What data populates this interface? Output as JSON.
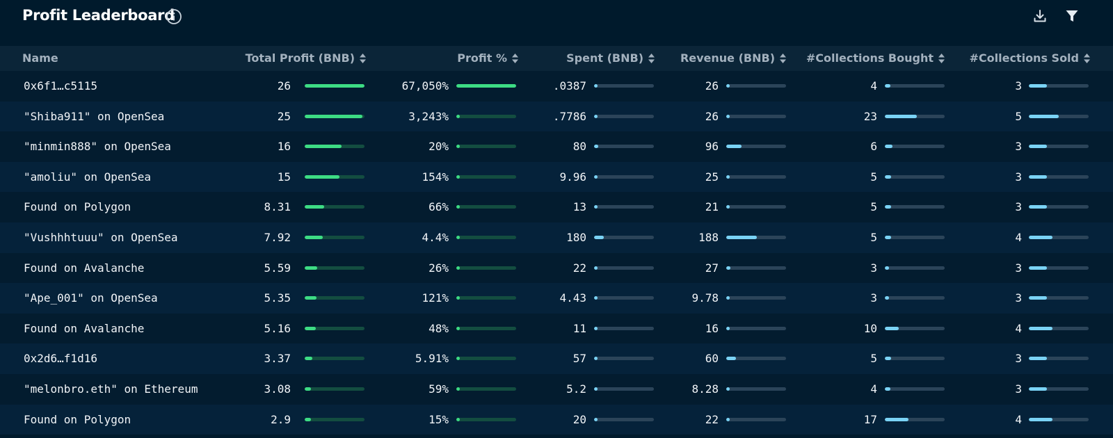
{
  "header": {
    "title": "Profit Leaderboard",
    "icons": [
      "info-icon",
      "download-icon",
      "filter-icon"
    ]
  },
  "colors": {
    "background": "#001a2c",
    "header_row": "#0b2538",
    "profit_bar": "#3ddc84",
    "profit_track": "#134d40",
    "value_bar": "#7ad3f5",
    "value_track": "#2b4459"
  },
  "columns": [
    "Name",
    "Total Profit (BNB)",
    "Profit %",
    "Spent (BNB)",
    "Revenue (BNB)",
    "#Collections Bought",
    "#Collections Sold"
  ],
  "rows": [
    {
      "name": "0x6f1…c5115",
      "profit": "26",
      "profit_pct": "67,050%",
      "spent": ".0387",
      "revenue": "26",
      "bought": "4",
      "sold": "3",
      "profit_fill": 1.0,
      "pct_fill": 1.0,
      "spent_fill": 0.0,
      "revenue_fill": 0.06,
      "bought_fill": 0.09,
      "sold_fill": 0.3
    },
    {
      "name": "\"Shiba911\" on OpenSea",
      "profit": "25",
      "profit_pct": "3,243%",
      "spent": ".7786",
      "revenue": "26",
      "bought": "23",
      "sold": "5",
      "profit_fill": 0.97,
      "pct_fill": 0.05,
      "spent_fill": 0.0,
      "revenue_fill": 0.06,
      "bought_fill": 0.54,
      "sold_fill": 0.5
    },
    {
      "name": "\"minmin888\" on OpenSea",
      "profit": "16",
      "profit_pct": "20%",
      "spent": "80",
      "revenue": "96",
      "bought": "6",
      "sold": "3",
      "profit_fill": 0.62,
      "pct_fill": 0.0,
      "spent_fill": 0.07,
      "revenue_fill": 0.26,
      "bought_fill": 0.13,
      "sold_fill": 0.3
    },
    {
      "name": "\"amoliu\" on OpenSea",
      "profit": "15",
      "profit_pct": "154%",
      "spent": "9.96",
      "revenue": "25",
      "bought": "5",
      "sold": "3",
      "profit_fill": 0.58,
      "pct_fill": 0.0,
      "spent_fill": 0.01,
      "revenue_fill": 0.06,
      "bought_fill": 0.11,
      "sold_fill": 0.3
    },
    {
      "name": "Found on Polygon",
      "profit": "8.31",
      "profit_pct": "66%",
      "spent": "13",
      "revenue": "21",
      "bought": "5",
      "sold": "3",
      "profit_fill": 0.32,
      "pct_fill": 0.0,
      "spent_fill": 0.01,
      "revenue_fill": 0.05,
      "bought_fill": 0.11,
      "sold_fill": 0.3
    },
    {
      "name": "\"Vushhhtuuu\" on OpenSea",
      "profit": "7.92",
      "profit_pct": "4.4%",
      "spent": "180",
      "revenue": "188",
      "bought": "5",
      "sold": "4",
      "profit_fill": 0.3,
      "pct_fill": 0.0,
      "spent_fill": 0.16,
      "revenue_fill": 0.51,
      "bought_fill": 0.11,
      "sold_fill": 0.4
    },
    {
      "name": "Found on Avalanche",
      "profit": "5.59",
      "profit_pct": "26%",
      "spent": "22",
      "revenue": "27",
      "bought": "3",
      "sold": "3",
      "profit_fill": 0.21,
      "pct_fill": 0.0,
      "spent_fill": 0.02,
      "revenue_fill": 0.07,
      "bought_fill": 0.07,
      "sold_fill": 0.3
    },
    {
      "name": "\"Ape_001\" on OpenSea",
      "profit": "5.35",
      "profit_pct": "121%",
      "spent": "4.43",
      "revenue": "9.78",
      "bought": "3",
      "sold": "3",
      "profit_fill": 0.2,
      "pct_fill": 0.0,
      "spent_fill": 0.0,
      "revenue_fill": 0.02,
      "bought_fill": 0.07,
      "sold_fill": 0.3
    },
    {
      "name": "Found on Avalanche",
      "profit": "5.16",
      "profit_pct": "48%",
      "spent": "11",
      "revenue": "16",
      "bought": "10",
      "sold": "4",
      "profit_fill": 0.19,
      "pct_fill": 0.0,
      "spent_fill": 0.01,
      "revenue_fill": 0.04,
      "bought_fill": 0.23,
      "sold_fill": 0.4
    },
    {
      "name": "0x2d6…f1d16",
      "profit": "3.37",
      "profit_pct": "5.91%",
      "spent": "57",
      "revenue": "60",
      "bought": "5",
      "sold": "3",
      "profit_fill": 0.13,
      "pct_fill": 0.0,
      "spent_fill": 0.05,
      "revenue_fill": 0.16,
      "bought_fill": 0.11,
      "sold_fill": 0.3
    },
    {
      "name": "\"melonbro.eth\" on Ethereum",
      "profit": "3.08",
      "profit_pct": "59%",
      "spent": "5.2",
      "revenue": "8.28",
      "bought": "4",
      "sold": "3",
      "profit_fill": 0.11,
      "pct_fill": 0.0,
      "spent_fill": 0.0,
      "revenue_fill": 0.02,
      "bought_fill": 0.09,
      "sold_fill": 0.3
    },
    {
      "name": "Found on Polygon",
      "profit": "2.9",
      "profit_pct": "15%",
      "spent": "20",
      "revenue": "22",
      "bought": "17",
      "sold": "4",
      "profit_fill": 0.11,
      "pct_fill": 0.0,
      "spent_fill": 0.02,
      "revenue_fill": 0.06,
      "bought_fill": 0.4,
      "sold_fill": 0.4
    }
  ]
}
